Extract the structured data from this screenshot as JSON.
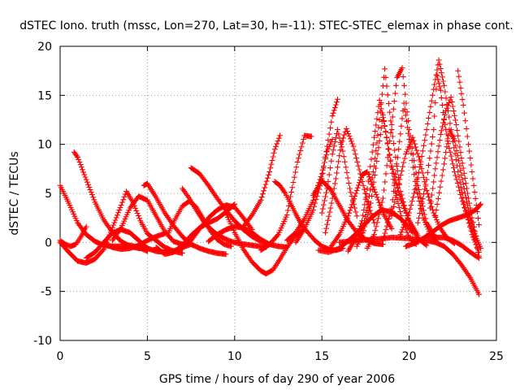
{
  "chart_data": {
    "type": "scatter",
    "title": "dSTEC Iono. truth (mssc, Lon=270, Lat=30, h=-11): STEC-STEC_elemax in phase cont.",
    "xlabel": "GPS time / hours of day 290 of year 2006",
    "ylabel": "dSTEC  / TECUs",
    "xlim": [
      0,
      25
    ],
    "ylim": [
      -10,
      20
    ],
    "xticks": [
      "0",
      "5",
      "10",
      "15",
      "20",
      "25"
    ],
    "yticks": [
      "-10",
      "-5",
      "0",
      "5",
      "10",
      "15",
      "20"
    ],
    "grid": true,
    "marker": "+",
    "color": "#ff0000",
    "series": [
      {
        "x": [
          0.0,
          0.5,
          1.0,
          1.5,
          2.0,
          2.5,
          3.0,
          3.5,
          4.0,
          4.5,
          5.0
        ],
        "y": [
          5.8,
          4.0,
          2.0,
          0.8,
          0.1,
          -0.3,
          -0.4,
          -0.4,
          -0.3,
          -0.5,
          -0.9
        ]
      },
      {
        "x": [
          0.0,
          0.5,
          1.0,
          1.5,
          2.0,
          2.5,
          3.0,
          3.5,
          3.8,
          4.2,
          4.6,
          5.0,
          5.5,
          6.0,
          6.5,
          7.0
        ],
        "y": [
          0.0,
          -1.0,
          -1.9,
          -2.1,
          -1.7,
          -0.7,
          1.5,
          3.8,
          5.2,
          4.0,
          2.2,
          0.9,
          0.2,
          -0.5,
          -0.9,
          -1.1
        ]
      },
      {
        "x": [
          0.0,
          0.3,
          0.6,
          0.9,
          1.2,
          1.5
        ],
        "y": [
          0.2,
          -0.2,
          -0.4,
          -0.2,
          0.6,
          1.6
        ]
      },
      {
        "x": [
          0.8,
          1.0,
          1.5,
          2.0,
          2.5,
          3.0,
          3.5,
          4.0,
          4.5,
          5.0
        ],
        "y": [
          9.2,
          8.7,
          6.4,
          4.1,
          2.3,
          1.0,
          0.1,
          -0.4,
          -0.6,
          -0.6
        ]
      },
      {
        "x": [
          1.5,
          2.0,
          2.5,
          3.0,
          3.5,
          4.0,
          4.5,
          5.0,
          5.5,
          6.0,
          6.5,
          7.0,
          7.5
        ],
        "y": [
          -1.6,
          -1.0,
          0.0,
          1.0,
          1.3,
          1.0,
          0.2,
          -0.6,
          -0.9,
          -1.0,
          -0.9,
          -0.5,
          -0.2
        ]
      },
      {
        "x": [
          2.5,
          3.0,
          3.5,
          4.0,
          4.5,
          5.0,
          5.5,
          6.0
        ],
        "y": [
          -0.1,
          -0.5,
          -0.7,
          -0.6,
          -0.3,
          0.2,
          0.6,
          0.9
        ]
      },
      {
        "x": [
          3.0,
          3.5,
          4.0,
          4.5,
          5.0,
          5.5,
          6.0,
          6.5,
          7.0
        ],
        "y": [
          0.2,
          1.5,
          3.5,
          4.7,
          4.3,
          2.7,
          1.1,
          0.1,
          -0.2
        ]
      },
      {
        "x": [
          4.8,
          5.0,
          5.5,
          6.0,
          6.5,
          7.0,
          7.5,
          8.0,
          8.5,
          9.0,
          9.5
        ],
        "y": [
          5.8,
          6.0,
          4.6,
          3.0,
          1.7,
          0.6,
          -0.2,
          -0.6,
          -0.9,
          -1.1,
          -1.2
        ]
      },
      {
        "x": [
          5.5,
          6.0,
          6.5,
          7.0,
          7.5,
          8.0,
          8.5,
          9.0,
          9.5,
          10.0
        ],
        "y": [
          -0.5,
          -1.2,
          -1.0,
          -0.3,
          0.7,
          1.5,
          2.0,
          2.4,
          3.1,
          3.9
        ]
      },
      {
        "x": [
          6.2,
          6.6,
          7.0,
          7.4,
          7.8,
          8.2,
          8.6,
          9.0,
          9.4,
          9.8
        ],
        "y": [
          1.0,
          2.4,
          3.7,
          4.2,
          3.6,
          2.4,
          1.2,
          0.3,
          -0.2,
          -0.4
        ]
      },
      {
        "x": [
          7.0,
          7.4,
          7.8,
          8.2,
          8.6,
          9.0,
          9.4,
          9.8,
          10.2,
          10.6,
          11.0,
          11.4,
          11.8
        ],
        "y": [
          5.5,
          4.5,
          3.3,
          2.2,
          1.4,
          0.8,
          0.4,
          0.1,
          -0.1,
          -0.2,
          -0.3,
          -0.4,
          -0.5
        ]
      },
      {
        "x": [
          7.5,
          8.0,
          8.5,
          9.0,
          9.5,
          10.0,
          10.5,
          11.0,
          11.5,
          12.0
        ],
        "y": [
          7.6,
          7.0,
          5.8,
          4.5,
          3.3,
          2.2,
          1.3,
          0.6,
          0.1,
          -0.2
        ]
      },
      {
        "x": [
          6.0,
          6.5,
          7.0,
          7.5,
          8.0,
          8.5,
          9.0,
          9.5,
          10.0,
          10.5,
          11.0
        ],
        "y": [
          -0.8,
          -0.9,
          -0.6,
          0.2,
          1.4,
          2.5,
          3.3,
          3.8,
          3.6,
          2.5,
          1.3
        ]
      },
      {
        "x": [
          8.5,
          9.0,
          9.5,
          10.0,
          10.5,
          11.0,
          11.5,
          12.0,
          12.5,
          13.0
        ],
        "y": [
          0.1,
          0.8,
          1.3,
          1.6,
          1.5,
          1.0,
          0.3,
          -0.2,
          -0.4,
          -0.5
        ]
      },
      {
        "x": [
          9.5,
          10.0,
          10.5,
          11.0,
          11.5,
          11.8,
          12.2,
          12.6,
          13.0,
          13.5,
          14.0
        ],
        "y": [
          3.0,
          1.0,
          -0.7,
          -2.0,
          -2.9,
          -3.2,
          -2.8,
          -1.7,
          -0.5,
          0.7,
          1.4
        ]
      },
      {
        "x": [
          10.5,
          11.0,
          11.5,
          12.0,
          12.3,
          12.6
        ],
        "y": [
          1.6,
          2.8,
          4.3,
          7.2,
          9.5,
          10.9
        ]
      },
      {
        "x": [
          11.5,
          12.0,
          12.5,
          13.0,
          13.3,
          13.6,
          14.0,
          14.4
        ],
        "y": [
          -0.8,
          -0.2,
          0.8,
          2.8,
          5.6,
          8.2,
          10.9,
          10.8
        ]
      },
      {
        "x": [
          12.3,
          12.6,
          12.9,
          13.2,
          13.5,
          13.8,
          14.2,
          14.6,
          15.0,
          15.4,
          15.8,
          16.2
        ],
        "y": [
          6.2,
          5.8,
          5.0,
          4.0,
          2.9,
          1.9,
          1.0,
          0.2,
          -0.4,
          -0.7,
          -0.8,
          -0.6
        ]
      },
      {
        "x": [
          13.0,
          13.5,
          14.0,
          14.5,
          15.0,
          15.3,
          15.6
        ],
        "y": [
          0.2,
          1.0,
          2.4,
          4.3,
          7.0,
          9.3,
          10.5
        ]
      },
      {
        "x": [
          13.5,
          14.0,
          14.5,
          15.0,
          15.3,
          15.6,
          15.9
        ],
        "y": [
          0.0,
          1.4,
          3.3,
          6.5,
          9.8,
          12.9,
          14.6
        ]
      },
      {
        "x": [
          14.5,
          15.0,
          15.5,
          16.0,
          16.5,
          17.0,
          17.5,
          18.0,
          18.5
        ],
        "y": [
          4.8,
          6.3,
          5.4,
          3.8,
          2.2,
          1.0,
          0.3,
          -0.1,
          -0.2
        ]
      },
      {
        "x": [
          15.0,
          15.3,
          15.6,
          15.9,
          16.2,
          16.6,
          17.0
        ],
        "y": [
          3.0,
          5.5,
          9.0,
          11.5,
          9.3,
          5.5,
          2.7
        ]
      },
      {
        "x": [
          15.2,
          15.5,
          15.8,
          16.1,
          16.4,
          16.8,
          17.2,
          17.6,
          18.0
        ],
        "y": [
          1.0,
          3.5,
          6.5,
          10.0,
          11.6,
          9.8,
          7.0,
          4.2,
          2.0
        ]
      },
      {
        "x": [
          14.8,
          15.4,
          16.0,
          16.6,
          17.2,
          17.8,
          18.4,
          19.0,
          19.6,
          20.2
        ],
        "y": [
          -0.8,
          -1.0,
          -0.6,
          0.3,
          1.3,
          2.5,
          3.3,
          3.1,
          2.3,
          1.0
        ]
      },
      {
        "x": [
          15.5,
          16.0,
          16.5,
          17.0,
          17.3,
          17.6,
          18.0,
          18.5,
          19.0
        ],
        "y": [
          -0.5,
          0.8,
          2.7,
          5.3,
          6.9,
          7.2,
          5.4,
          3.0,
          1.4
        ]
      },
      {
        "x": [
          16.5,
          17.0,
          17.3,
          17.6,
          18.0,
          18.3,
          18.6,
          19.0,
          19.5,
          20.0,
          20.5
        ],
        "y": [
          -0.9,
          0.6,
          2.2,
          5.5,
          10.7,
          14.5,
          11.9,
          7.8,
          4.5,
          2.2,
          0.7
        ]
      },
      {
        "x": [
          17.0,
          17.4,
          17.8,
          18.2,
          18.5,
          18.8,
          19.2,
          19.6,
          20.0,
          20.4
        ],
        "y": [
          -0.4,
          1.2,
          4.0,
          9.0,
          13.0,
          9.5,
          5.2,
          2.3,
          0.5,
          -0.2
        ]
      },
      {
        "x": [
          17.2,
          17.6,
          18.0,
          18.3,
          18.6,
          19.0,
          19.5,
          20.0,
          20.5,
          21.0
        ],
        "y": [
          0.5,
          3.5,
          7.8,
          12.5,
          17.7,
          11.5,
          5.2,
          2.0,
          0.4,
          -0.3
        ]
      },
      {
        "x": [
          17.6,
          18.0,
          18.5,
          19.0,
          19.3,
          19.6,
          20.0,
          20.5,
          21.0,
          21.5
        ],
        "y": [
          -0.6,
          0.8,
          4.5,
          12.0,
          16.8,
          17.8,
          11.5,
          5.8,
          2.0,
          0.5
        ]
      },
      {
        "x": [
          18.5,
          19.0,
          19.4,
          19.7,
          20.0,
          20.4,
          20.8,
          21.2,
          21.6
        ],
        "y": [
          0.2,
          3.5,
          9.5,
          14.2,
          10.5,
          5.5,
          2.5,
          0.9,
          0.0
        ]
      },
      {
        "x": [
          19.0,
          19.4,
          19.8,
          20.2,
          20.6,
          21.0,
          21.4,
          21.8,
          22.2,
          22.6
        ],
        "y": [
          2.7,
          6.0,
          9.0,
          10.7,
          8.4,
          5.3,
          3.0,
          1.4,
          0.4,
          -0.1
        ]
      },
      {
        "x": [
          19.5,
          20.0,
          20.5,
          21.0,
          21.4,
          21.7,
          22.0,
          22.4,
          22.8,
          23.2,
          23.6,
          24.0
        ],
        "y": [
          0.8,
          3.0,
          6.6,
          11.5,
          15.6,
          18.6,
          16.0,
          11.5,
          7.2,
          3.5,
          0.8,
          -1.0
        ]
      },
      {
        "x": [
          20.5,
          21.0,
          21.4,
          21.6,
          21.8,
          22.0,
          22.3,
          22.6,
          23.0,
          23.4,
          23.8,
          24.0
        ],
        "y": [
          2.0,
          6.4,
          11.5,
          17.0,
          15.5,
          12.5,
          9.6,
          7.2,
          4.5,
          2.3,
          0.2,
          -1.4
        ]
      },
      {
        "x": [
          21.2,
          21.5,
          21.8,
          22.1,
          22.4,
          22.7,
          23.0,
          23.3,
          23.6,
          23.9
        ],
        "y": [
          3.5,
          7.5,
          11.0,
          13.4,
          14.8,
          12.0,
          8.6,
          5.5,
          2.5,
          0.2
        ]
      },
      {
        "x": [
          19.8,
          20.3,
          20.8,
          21.3,
          21.8,
          22.3,
          22.8,
          23.3,
          23.8,
          24.1
        ],
        "y": [
          -0.4,
          -0.1,
          0.4,
          1.0,
          1.7,
          2.2,
          2.5,
          2.8,
          3.3,
          3.9
        ]
      },
      {
        "x": [
          21.0,
          21.5,
          22.0,
          22.5,
          23.0,
          23.5,
          24.0
        ],
        "y": [
          0.7,
          0.5,
          0.5,
          0.2,
          -0.3,
          -1.0,
          -1.6
        ]
      },
      {
        "x": [
          21.5,
          22.0,
          22.3,
          22.6,
          22.9,
          23.2,
          23.5,
          23.8,
          24.1
        ],
        "y": [
          2.7,
          8.0,
          11.5,
          10.4,
          7.8,
          5.0,
          2.5,
          0.6,
          -0.6
        ]
      },
      {
        "x": [
          22.8,
          23.1,
          23.4,
          23.7,
          24.0
        ],
        "y": [
          17.5,
          14.0,
          10.0,
          5.8,
          1.8
        ]
      },
      {
        "x": [
          16.0,
          17.0,
          18.0,
          19.0,
          20.0,
          21.0,
          21.5,
          22.0,
          22.5,
          23.0,
          23.5,
          24.0
        ],
        "y": [
          0.0,
          0.2,
          0.3,
          0.5,
          0.4,
          0.2,
          0.0,
          -0.4,
          -1.2,
          -2.3,
          -3.6,
          -5.3
        ]
      }
    ]
  }
}
